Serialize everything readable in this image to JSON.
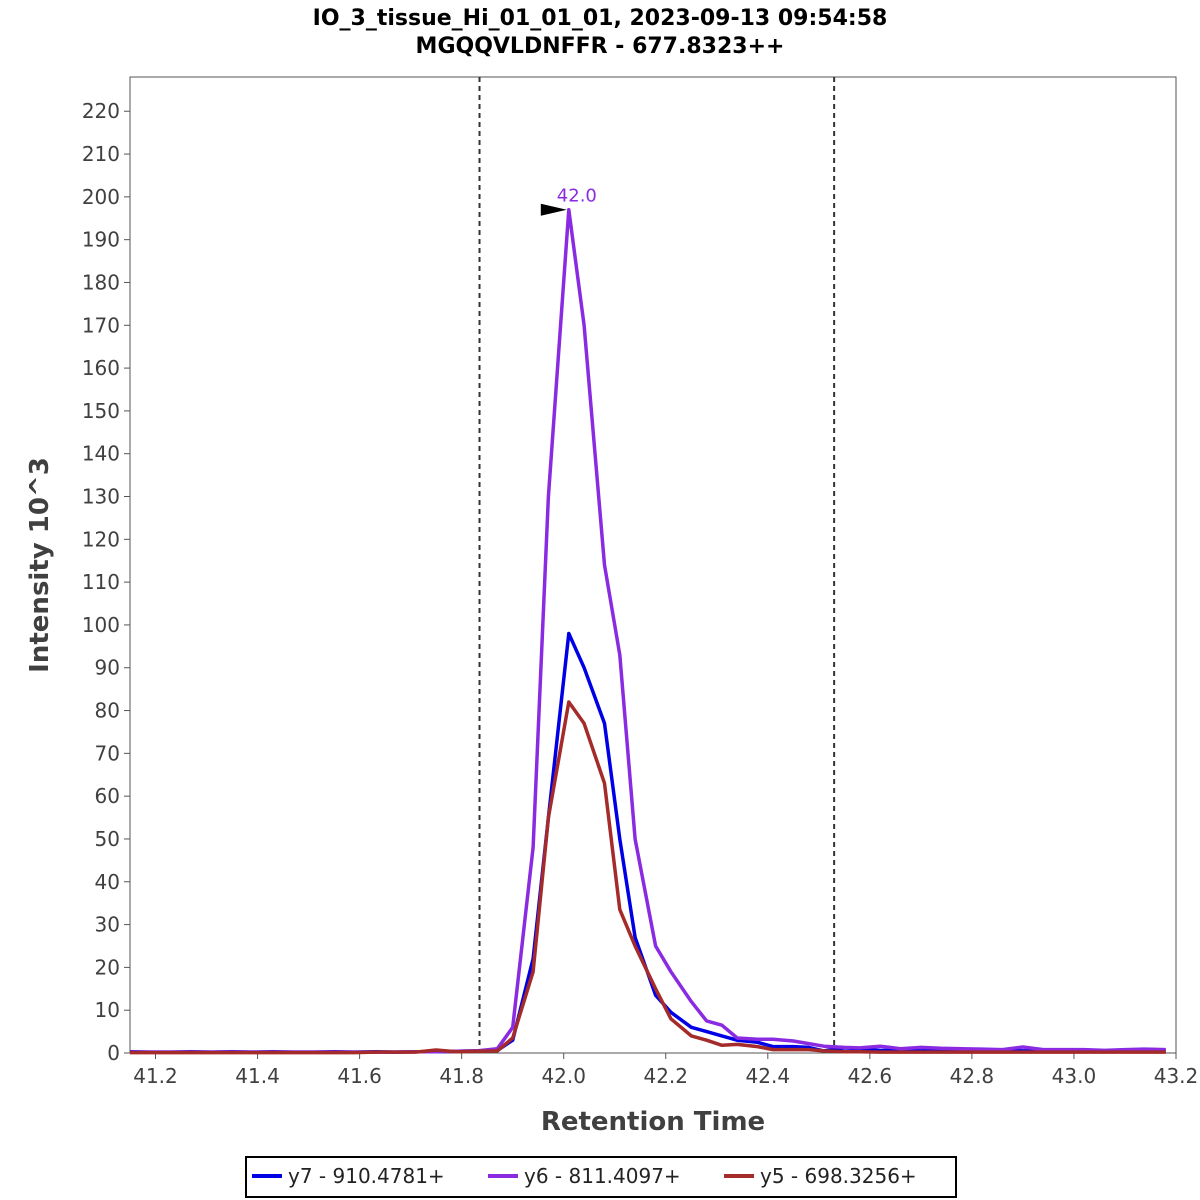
{
  "chart_data": {
    "type": "line",
    "title": "IO_3_tissue_Hi_01_01_01, 2023-09-13 09:54:58",
    "subtitle": "MGQQVLDNFFR - 677.8323++",
    "xlabel": "Retention Time",
    "ylabel": "Intensity 10^3",
    "xlim": [
      41.15,
      43.2
    ],
    "ylim": [
      0,
      228
    ],
    "xticks": [
      41.2,
      41.4,
      41.6,
      41.8,
      42.0,
      42.2,
      42.4,
      42.6,
      42.8,
      43.0,
      43.2
    ],
    "xtick_labels": [
      "41.2",
      "41.4",
      "41.6",
      "41.8",
      "42.0",
      "42.2",
      "42.4",
      "42.6",
      "42.8",
      "43.0",
      "43.2"
    ],
    "yticks": [
      0,
      10,
      20,
      30,
      40,
      50,
      60,
      70,
      80,
      90,
      100,
      110,
      120,
      130,
      140,
      150,
      160,
      170,
      180,
      190,
      200,
      210,
      220
    ],
    "ytick_labels": [
      "0",
      "10",
      "20",
      "30",
      "40",
      "50",
      "60",
      "70",
      "80",
      "90",
      "100",
      "110",
      "120",
      "130",
      "140",
      "150",
      "160",
      "170",
      "180",
      "190",
      "200",
      "210",
      "220"
    ],
    "boundaries": [
      41.835,
      42.53
    ],
    "peak_annotation": {
      "x": 42.01,
      "y": 197,
      "label": "42.0",
      "color": "#8a2be2"
    },
    "legend_position": "bottom-center",
    "series": [
      {
        "name": "y7 - 910.4781+",
        "color": "#0000e6",
        "x": [
          41.15,
          41.19,
          41.23,
          41.27,
          41.31,
          41.35,
          41.39,
          41.43,
          41.47,
          41.51,
          41.55,
          41.59,
          41.63,
          41.67,
          41.71,
          41.75,
          41.79,
          41.83,
          41.87,
          41.9,
          41.94,
          41.97,
          42.01,
          42.04,
          42.08,
          42.11,
          42.14,
          42.18,
          42.21,
          42.25,
          42.28,
          42.31,
          42.34,
          42.38,
          42.41,
          42.45,
          42.48,
          42.51,
          42.55,
          42.58,
          42.62,
          42.66,
          42.7,
          42.74,
          42.78,
          42.82,
          42.86,
          42.9,
          42.94,
          42.98,
          43.02,
          43.06,
          43.1,
          43.14,
          43.18
        ],
        "y": [
          0.3,
          0.2,
          0.2,
          0.3,
          0.2,
          0.3,
          0.2,
          0.3,
          0.2,
          0.2,
          0.3,
          0.2,
          0.3,
          0.2,
          0.3,
          0.3,
          0.4,
          0.5,
          0.6,
          3.0,
          22.0,
          55.0,
          98.0,
          90.0,
          77.0,
          50.0,
          27.0,
          13.5,
          9.5,
          6.0,
          5.0,
          4.0,
          3.0,
          2.5,
          1.5,
          1.5,
          1.3,
          0.5,
          1.2,
          1.0,
          0.6,
          0.6,
          0.5,
          0.6,
          0.5,
          0.5,
          0.6,
          0.5,
          0.5,
          0.5,
          0.4,
          0.5,
          0.6,
          0.5,
          0.5
        ]
      },
      {
        "name": "y6 - 811.4097+",
        "color": "#8a2be2",
        "x": [
          41.15,
          41.19,
          41.23,
          41.27,
          41.31,
          41.35,
          41.39,
          41.43,
          41.47,
          41.51,
          41.55,
          41.59,
          41.63,
          41.67,
          41.71,
          41.75,
          41.79,
          41.83,
          41.87,
          41.9,
          41.94,
          41.97,
          42.01,
          42.04,
          42.08,
          42.11,
          42.14,
          42.18,
          42.21,
          42.25,
          42.28,
          42.31,
          42.34,
          42.38,
          42.41,
          42.45,
          42.48,
          42.51,
          42.55,
          42.58,
          42.62,
          42.66,
          42.7,
          42.74,
          42.78,
          42.82,
          42.86,
          42.9,
          42.94,
          42.98,
          43.02,
          43.06,
          43.1,
          43.14,
          43.18
        ],
        "y": [
          0.2,
          0.2,
          0.2,
          0.2,
          0.2,
          0.2,
          0.2,
          0.2,
          0.2,
          0.2,
          0.2,
          0.2,
          0.2,
          0.2,
          0.3,
          0.3,
          0.4,
          0.5,
          1.0,
          6.0,
          48.0,
          130.0,
          197.0,
          170.0,
          114.0,
          93.0,
          50.0,
          25.0,
          19.0,
          12.0,
          7.5,
          6.5,
          3.5,
          3.2,
          3.2,
          2.8,
          2.2,
          1.6,
          1.3,
          1.2,
          1.6,
          1.0,
          1.3,
          1.1,
          1.0,
          0.9,
          0.8,
          1.4,
          0.8,
          0.8,
          0.8,
          0.6,
          0.8,
          0.9,
          0.8
        ]
      },
      {
        "name": "y5 - 698.3256+",
        "color": "#a52a2a",
        "x": [
          41.15,
          41.19,
          41.23,
          41.27,
          41.31,
          41.35,
          41.39,
          41.43,
          41.47,
          41.51,
          41.55,
          41.59,
          41.63,
          41.67,
          41.71,
          41.75,
          41.79,
          41.83,
          41.87,
          41.9,
          41.94,
          41.97,
          42.01,
          42.04,
          42.08,
          42.11,
          42.14,
          42.18,
          42.21,
          42.25,
          42.28,
          42.31,
          42.34,
          42.38,
          42.41,
          42.45,
          42.48,
          42.51,
          42.55,
          42.58,
          42.62,
          42.66,
          42.7,
          42.74,
          42.78,
          42.82,
          42.86,
          42.9,
          42.94,
          42.98,
          43.02,
          43.06,
          43.1,
          43.14,
          43.18
        ],
        "y": [
          0.1,
          0.1,
          0.1,
          0.1,
          0.1,
          0.1,
          0.1,
          0.1,
          0.1,
          0.1,
          0.1,
          0.1,
          0.2,
          0.2,
          0.2,
          0.7,
          0.3,
          0.4,
          0.5,
          3.5,
          19.0,
          55.0,
          82.0,
          77.0,
          63.0,
          33.5,
          25.0,
          15.0,
          8.0,
          4.0,
          3.0,
          1.8,
          2.0,
          1.5,
          0.8,
          0.8,
          0.8,
          0.5,
          0.3,
          0.3,
          0.2,
          0.2,
          0.2,
          0.2,
          0.2,
          0.2,
          0.2,
          0.2,
          0.2,
          0.2,
          0.2,
          0.2,
          0.2,
          0.2,
          0.2
        ]
      }
    ]
  }
}
